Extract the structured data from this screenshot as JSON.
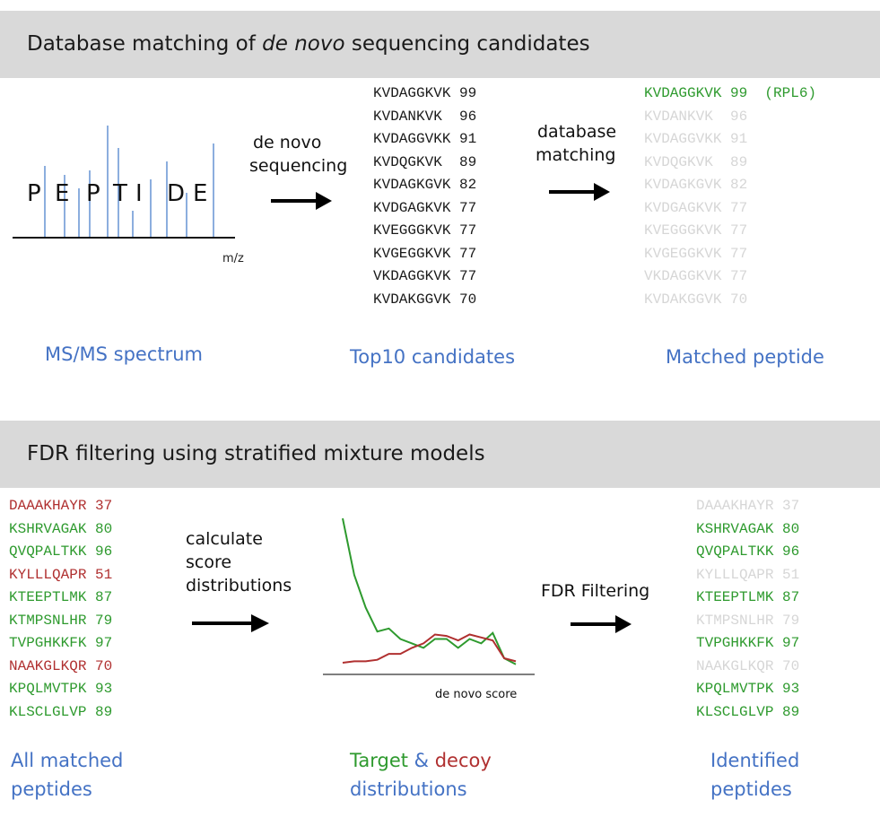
{
  "section1": {
    "title_pre": "Database matching of ",
    "title_italic": "de novo",
    "title_post": " sequencing candidates",
    "spectrum_letters": [
      "P",
      "E",
      "P",
      "T",
      "I",
      "D",
      "E"
    ],
    "spectrum_axis_label": "m/z",
    "arrow1_label": [
      "de novo",
      "sequencing"
    ],
    "arrow2_label": [
      "database",
      "matching"
    ],
    "candidates": [
      {
        "seq": "KVDAGGKVK",
        "score": "99"
      },
      {
        "seq": "KVDANKVK",
        "score": "96"
      },
      {
        "seq": "KVDAGGVKK",
        "score": "91"
      },
      {
        "seq": "KVDQGKVK",
        "score": "89"
      },
      {
        "seq": "KVDAGKGVK",
        "score": "82"
      },
      {
        "seq": "KVDGAGKVK",
        "score": "77"
      },
      {
        "seq": "KVEGGGKVK",
        "score": "77"
      },
      {
        "seq": "KVGEGGKVK",
        "score": "77"
      },
      {
        "seq": "VKDAGGKVK",
        "score": "77"
      },
      {
        "seq": "KVDAKGGVK",
        "score": "70"
      }
    ],
    "matched_annotation": "(RPL6)",
    "captions": {
      "spectrum": "MS/MS spectrum",
      "candidates": "Top10 candidates",
      "matched": "Matched peptide"
    }
  },
  "section2": {
    "title": "FDR filtering using stratified mixture models",
    "peptides": [
      {
        "seq": "DAAAKHAYR",
        "score": "37",
        "class": "decoy",
        "kept": false
      },
      {
        "seq": "KSHRVAGAK",
        "score": "80",
        "class": "target",
        "kept": true
      },
      {
        "seq": "QVQPALTKK",
        "score": "96",
        "class": "target",
        "kept": true
      },
      {
        "seq": "KYLLLQAPR",
        "score": "51",
        "class": "decoy",
        "kept": false
      },
      {
        "seq": "KTEEPTLMK",
        "score": "87",
        "class": "target",
        "kept": true
      },
      {
        "seq": "KTMPSNLHR",
        "score": "79",
        "class": "target",
        "kept": false
      },
      {
        "seq": "TVPGHKKFK",
        "score": "97",
        "class": "target",
        "kept": true
      },
      {
        "seq": "NAAKGLKQR",
        "score": "70",
        "class": "decoy",
        "kept": false
      },
      {
        "seq": "KPQLMVTPK",
        "score": "93",
        "class": "target",
        "kept": true
      },
      {
        "seq": "KLSCLGLVP",
        "score": "89",
        "class": "target",
        "kept": true
      }
    ],
    "arrow1_label": [
      "calculate",
      "score",
      "distributions"
    ],
    "arrow2_label": "FDR Filtering",
    "distribution_xlabel": "de novo score",
    "captions": {
      "all_matched": [
        "All matched",
        "peptides"
      ],
      "dist_target": "Target",
      "dist_amp": " & ",
      "dist_decoy": "decoy",
      "dist_line2": "distributions",
      "identified": [
        "Identified",
        "peptides"
      ]
    }
  },
  "colors": {
    "target": "#2e9a2e",
    "decoy": "#b03030",
    "caption": "#4472c4",
    "faded": "#d6d6d6",
    "banner": "#d9d9d9"
  },
  "chart_data": {
    "type": "line",
    "xlabel": "de novo score",
    "series": [
      {
        "values": [
          100,
          62,
          40,
          24,
          26,
          19,
          16,
          13,
          19,
          19,
          13,
          19,
          16,
          23,
          6,
          2
        ]
      },
      {
        "values": [
          3,
          4,
          4,
          5,
          9,
          9,
          13,
          16,
          22,
          21,
          18,
          22,
          20,
          18,
          6,
          4
        ]
      }
    ]
  }
}
